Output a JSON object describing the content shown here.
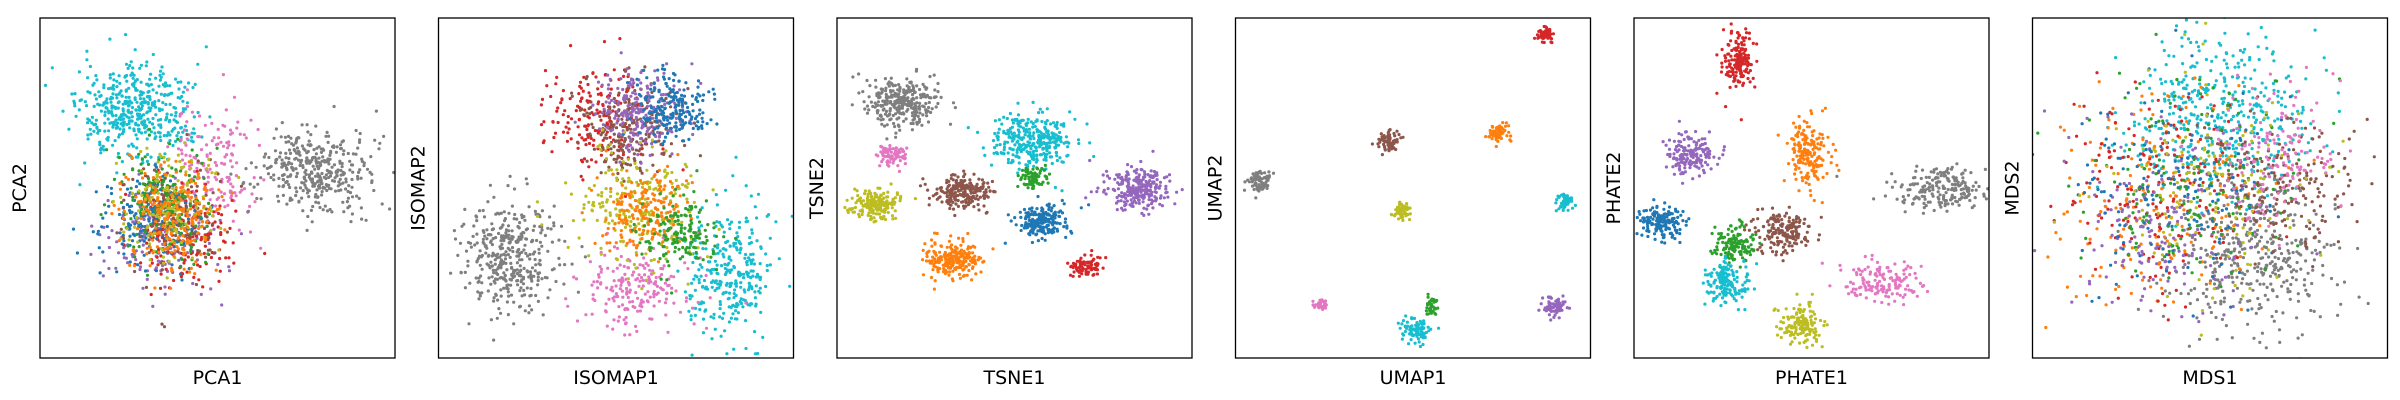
{
  "palette": {
    "blue": "#1f77b4",
    "orange": "#ff7f0e",
    "green": "#2ca02c",
    "red": "#d62728",
    "purple": "#9467bd",
    "brown": "#8c564b",
    "pink": "#e377c2",
    "gray": "#7f7f7f",
    "olive": "#bcbd22",
    "cyan": "#17becf"
  },
  "chart_data": [
    {
      "type": "scatter",
      "xlabel": "PCA1",
      "ylabel": "PCA2",
      "xlim": [
        0,
        100
      ],
      "ylim": [
        0,
        100
      ],
      "ticks": "none",
      "grid": false,
      "legend": "none",
      "clusters": [
        {
          "color": "cyan",
          "center": [
            27,
            72
          ],
          "spread": [
            8,
            7
          ],
          "n": 450
        },
        {
          "color": "gray",
          "center": [
            77,
            55
          ],
          "spread": [
            8,
            6
          ],
          "n": 380
        },
        {
          "color": "pink",
          "center": [
            50,
            58
          ],
          "spread": [
            6,
            9
          ],
          "n": 160
        },
        {
          "color": "purple",
          "center": [
            34,
            36
          ],
          "spread": [
            8,
            8
          ],
          "n": 180
        },
        {
          "color": "red",
          "center": [
            40,
            38
          ],
          "spread": [
            7,
            8
          ],
          "n": 180
        },
        {
          "color": "blue",
          "center": [
            31,
            40
          ],
          "spread": [
            7,
            8
          ],
          "n": 180
        },
        {
          "color": "brown",
          "center": [
            37,
            42
          ],
          "spread": [
            7,
            8
          ],
          "n": 150
        },
        {
          "color": "green",
          "center": [
            35,
            47
          ],
          "spread": [
            6,
            8
          ],
          "n": 170
        },
        {
          "color": "olive",
          "center": [
            36,
            45
          ],
          "spread": [
            6,
            8
          ],
          "n": 170
        },
        {
          "color": "orange",
          "center": [
            38,
            41
          ],
          "spread": [
            7,
            8
          ],
          "n": 200
        }
      ]
    },
    {
      "type": "scatter",
      "xlabel": "ISOMAP1",
      "ylabel": "ISOMAP2",
      "xlim": [
        0,
        100
      ],
      "ylim": [
        0,
        100
      ],
      "ticks": "none",
      "grid": false,
      "legend": "none",
      "clusters": [
        {
          "color": "gray",
          "center": [
            20,
            30
          ],
          "spread": [
            7,
            8
          ],
          "n": 380
        },
        {
          "color": "cyan",
          "center": [
            82,
            25
          ],
          "spread": [
            6,
            9
          ],
          "n": 300
        },
        {
          "color": "pink",
          "center": [
            55,
            20
          ],
          "spread": [
            8,
            6
          ],
          "n": 200
        },
        {
          "color": "red",
          "center": [
            45,
            70
          ],
          "spread": [
            7,
            8
          ],
          "n": 200
        },
        {
          "color": "brown",
          "center": [
            54,
            68
          ],
          "spread": [
            7,
            7
          ],
          "n": 220
        },
        {
          "color": "purple",
          "center": [
            57,
            72
          ],
          "spread": [
            6,
            6
          ],
          "n": 220
        },
        {
          "color": "blue",
          "center": [
            66,
            74
          ],
          "spread": [
            5,
            5
          ],
          "n": 200
        },
        {
          "color": "olive",
          "center": [
            56,
            45
          ],
          "spread": [
            9,
            9
          ],
          "n": 230
        },
        {
          "color": "orange",
          "center": [
            58,
            43
          ],
          "spread": [
            6,
            6
          ],
          "n": 200
        },
        {
          "color": "green",
          "center": [
            68,
            37
          ],
          "spread": [
            6,
            5
          ],
          "n": 160
        }
      ]
    },
    {
      "type": "scatter",
      "xlabel": "TSNE1",
      "ylabel": "TSNE2",
      "xlim": [
        0,
        100
      ],
      "ylim": [
        0,
        100
      ],
      "ticks": "none",
      "grid": false,
      "legend": "none",
      "clusters": [
        {
          "color": "gray",
          "center": [
            18,
            75
          ],
          "spread": [
            5,
            3.5
          ],
          "n": 300
        },
        {
          "color": "cyan",
          "center": [
            55,
            64
          ],
          "spread": [
            6,
            4
          ],
          "n": 320
        },
        {
          "color": "pink",
          "center": [
            16,
            60
          ],
          "spread": [
            2.4,
            1.6
          ],
          "n": 80
        },
        {
          "color": "brown",
          "center": [
            35,
            49
          ],
          "spread": [
            4,
            2.6
          ],
          "n": 220
        },
        {
          "color": "green",
          "center": [
            55,
            53
          ],
          "spread": [
            2,
            1.6
          ],
          "n": 80
        },
        {
          "color": "purple",
          "center": [
            85,
            50
          ],
          "spread": [
            4.5,
            3
          ],
          "n": 260
        },
        {
          "color": "olive",
          "center": [
            11,
            45
          ],
          "spread": [
            3.6,
            2.4
          ],
          "n": 180
        },
        {
          "color": "blue",
          "center": [
            57,
            40
          ],
          "spread": [
            3.6,
            2.4
          ],
          "n": 200
        },
        {
          "color": "orange",
          "center": [
            32,
            29
          ],
          "spread": [
            4,
            2.6
          ],
          "n": 220
        },
        {
          "color": "red",
          "center": [
            70,
            27
          ],
          "spread": [
            2.3,
            1.5
          ],
          "n": 90
        }
      ]
    },
    {
      "type": "scatter",
      "xlabel": "UMAP1",
      "ylabel": "UMAP2",
      "xlim": [
        0,
        100
      ],
      "ylim": [
        0,
        100
      ],
      "ticks": "none",
      "grid": false,
      "legend": "none",
      "clusters": [
        {
          "color": "red",
          "center": [
            87,
            95
          ],
          "spread": [
            1.0,
            1.0
          ],
          "n": 60
        },
        {
          "color": "brown",
          "center": [
            43,
            64
          ],
          "spread": [
            1.5,
            1.5
          ],
          "n": 70
        },
        {
          "color": "orange",
          "center": [
            74,
            66
          ],
          "spread": [
            1.5,
            1.5
          ],
          "n": 70
        },
        {
          "color": "gray",
          "center": [
            7,
            52
          ],
          "spread": [
            1.6,
            1.6
          ],
          "n": 80
        },
        {
          "color": "cyan",
          "center": [
            93,
            46
          ],
          "spread": [
            1.2,
            1.2
          ],
          "n": 60
        },
        {
          "color": "olive",
          "center": [
            47,
            43
          ],
          "spread": [
            1.2,
            1.2
          ],
          "n": 50
        },
        {
          "color": "pink",
          "center": [
            24,
            16
          ],
          "spread": [
            0.8,
            0.8
          ],
          "n": 30
        },
        {
          "color": "purple",
          "center": [
            90,
            15
          ],
          "spread": [
            1.5,
            1.5
          ],
          "n": 70
        },
        {
          "color": "cyan",
          "center": [
            51,
            8
          ],
          "spread": [
            2.0,
            2.0
          ],
          "n": 90
        },
        {
          "color": "green",
          "center": [
            55,
            15
          ],
          "spread": [
            0.8,
            1.6
          ],
          "n": 40
        }
      ]
    },
    {
      "type": "scatter",
      "xlabel": "PHATE1",
      "ylabel": "PHATE2",
      "xlim": [
        0,
        100
      ],
      "ylim": [
        0,
        100
      ],
      "ticks": "none",
      "grid": false,
      "legend": "none",
      "clusters": [
        {
          "color": "red",
          "center": [
            29,
            88
          ],
          "spread": [
            2,
            4
          ],
          "n": 160
        },
        {
          "color": "purple",
          "center": [
            16,
            60
          ],
          "spread": [
            3.5,
            3
          ],
          "n": 160
        },
        {
          "color": "orange",
          "center": [
            49,
            60
          ],
          "spread": [
            3,
            5
          ],
          "n": 180
        },
        {
          "color": "gray",
          "center": [
            87,
            50
          ],
          "spread": [
            7,
            3
          ],
          "n": 200
        },
        {
          "color": "blue",
          "center": [
            8,
            40
          ],
          "spread": [
            3,
            2.5
          ],
          "n": 150
        },
        {
          "color": "brown",
          "center": [
            42,
            37
          ],
          "spread": [
            4,
            3
          ],
          "n": 170
        },
        {
          "color": "green",
          "center": [
            28,
            33
          ],
          "spread": [
            3,
            3
          ],
          "n": 140
        },
        {
          "color": "cyan",
          "center": [
            26,
            22
          ],
          "spread": [
            3,
            3
          ],
          "n": 150
        },
        {
          "color": "pink",
          "center": [
            70,
            22
          ],
          "spread": [
            6,
            3
          ],
          "n": 150
        },
        {
          "color": "olive",
          "center": [
            47,
            10
          ],
          "spread": [
            3,
            3
          ],
          "n": 150
        }
      ]
    },
    {
      "type": "scatter",
      "xlabel": "MDS1",
      "ylabel": "MDS2",
      "xlim": [
        0,
        100
      ],
      "ylim": [
        0,
        100
      ],
      "ticks": "none",
      "grid": false,
      "legend": "none",
      "clusters": [
        {
          "color": "cyan",
          "center": [
            52,
            72
          ],
          "spread": [
            13,
            12
          ],
          "n": 450
        },
        {
          "color": "gray",
          "center": [
            62,
            30
          ],
          "spread": [
            12,
            11
          ],
          "n": 420
        },
        {
          "color": "orange",
          "center": [
            35,
            45
          ],
          "spread": [
            14,
            15
          ],
          "n": 200
        },
        {
          "color": "red",
          "center": [
            35,
            50
          ],
          "spread": [
            14,
            15
          ],
          "n": 180
        },
        {
          "color": "purple",
          "center": [
            38,
            42
          ],
          "spread": [
            14,
            15
          ],
          "n": 180
        },
        {
          "color": "blue",
          "center": [
            40,
            50
          ],
          "spread": [
            15,
            15
          ],
          "n": 180
        },
        {
          "color": "green",
          "center": [
            45,
            52
          ],
          "spread": [
            15,
            15
          ],
          "n": 160
        },
        {
          "color": "brown",
          "center": [
            72,
            52
          ],
          "spread": [
            10,
            10
          ],
          "n": 180
        },
        {
          "color": "olive",
          "center": [
            50,
            50
          ],
          "spread": [
            16,
            16
          ],
          "n": 150
        },
        {
          "color": "pink",
          "center": [
            70,
            62
          ],
          "spread": [
            10,
            10
          ],
          "n": 140
        }
      ]
    }
  ]
}
